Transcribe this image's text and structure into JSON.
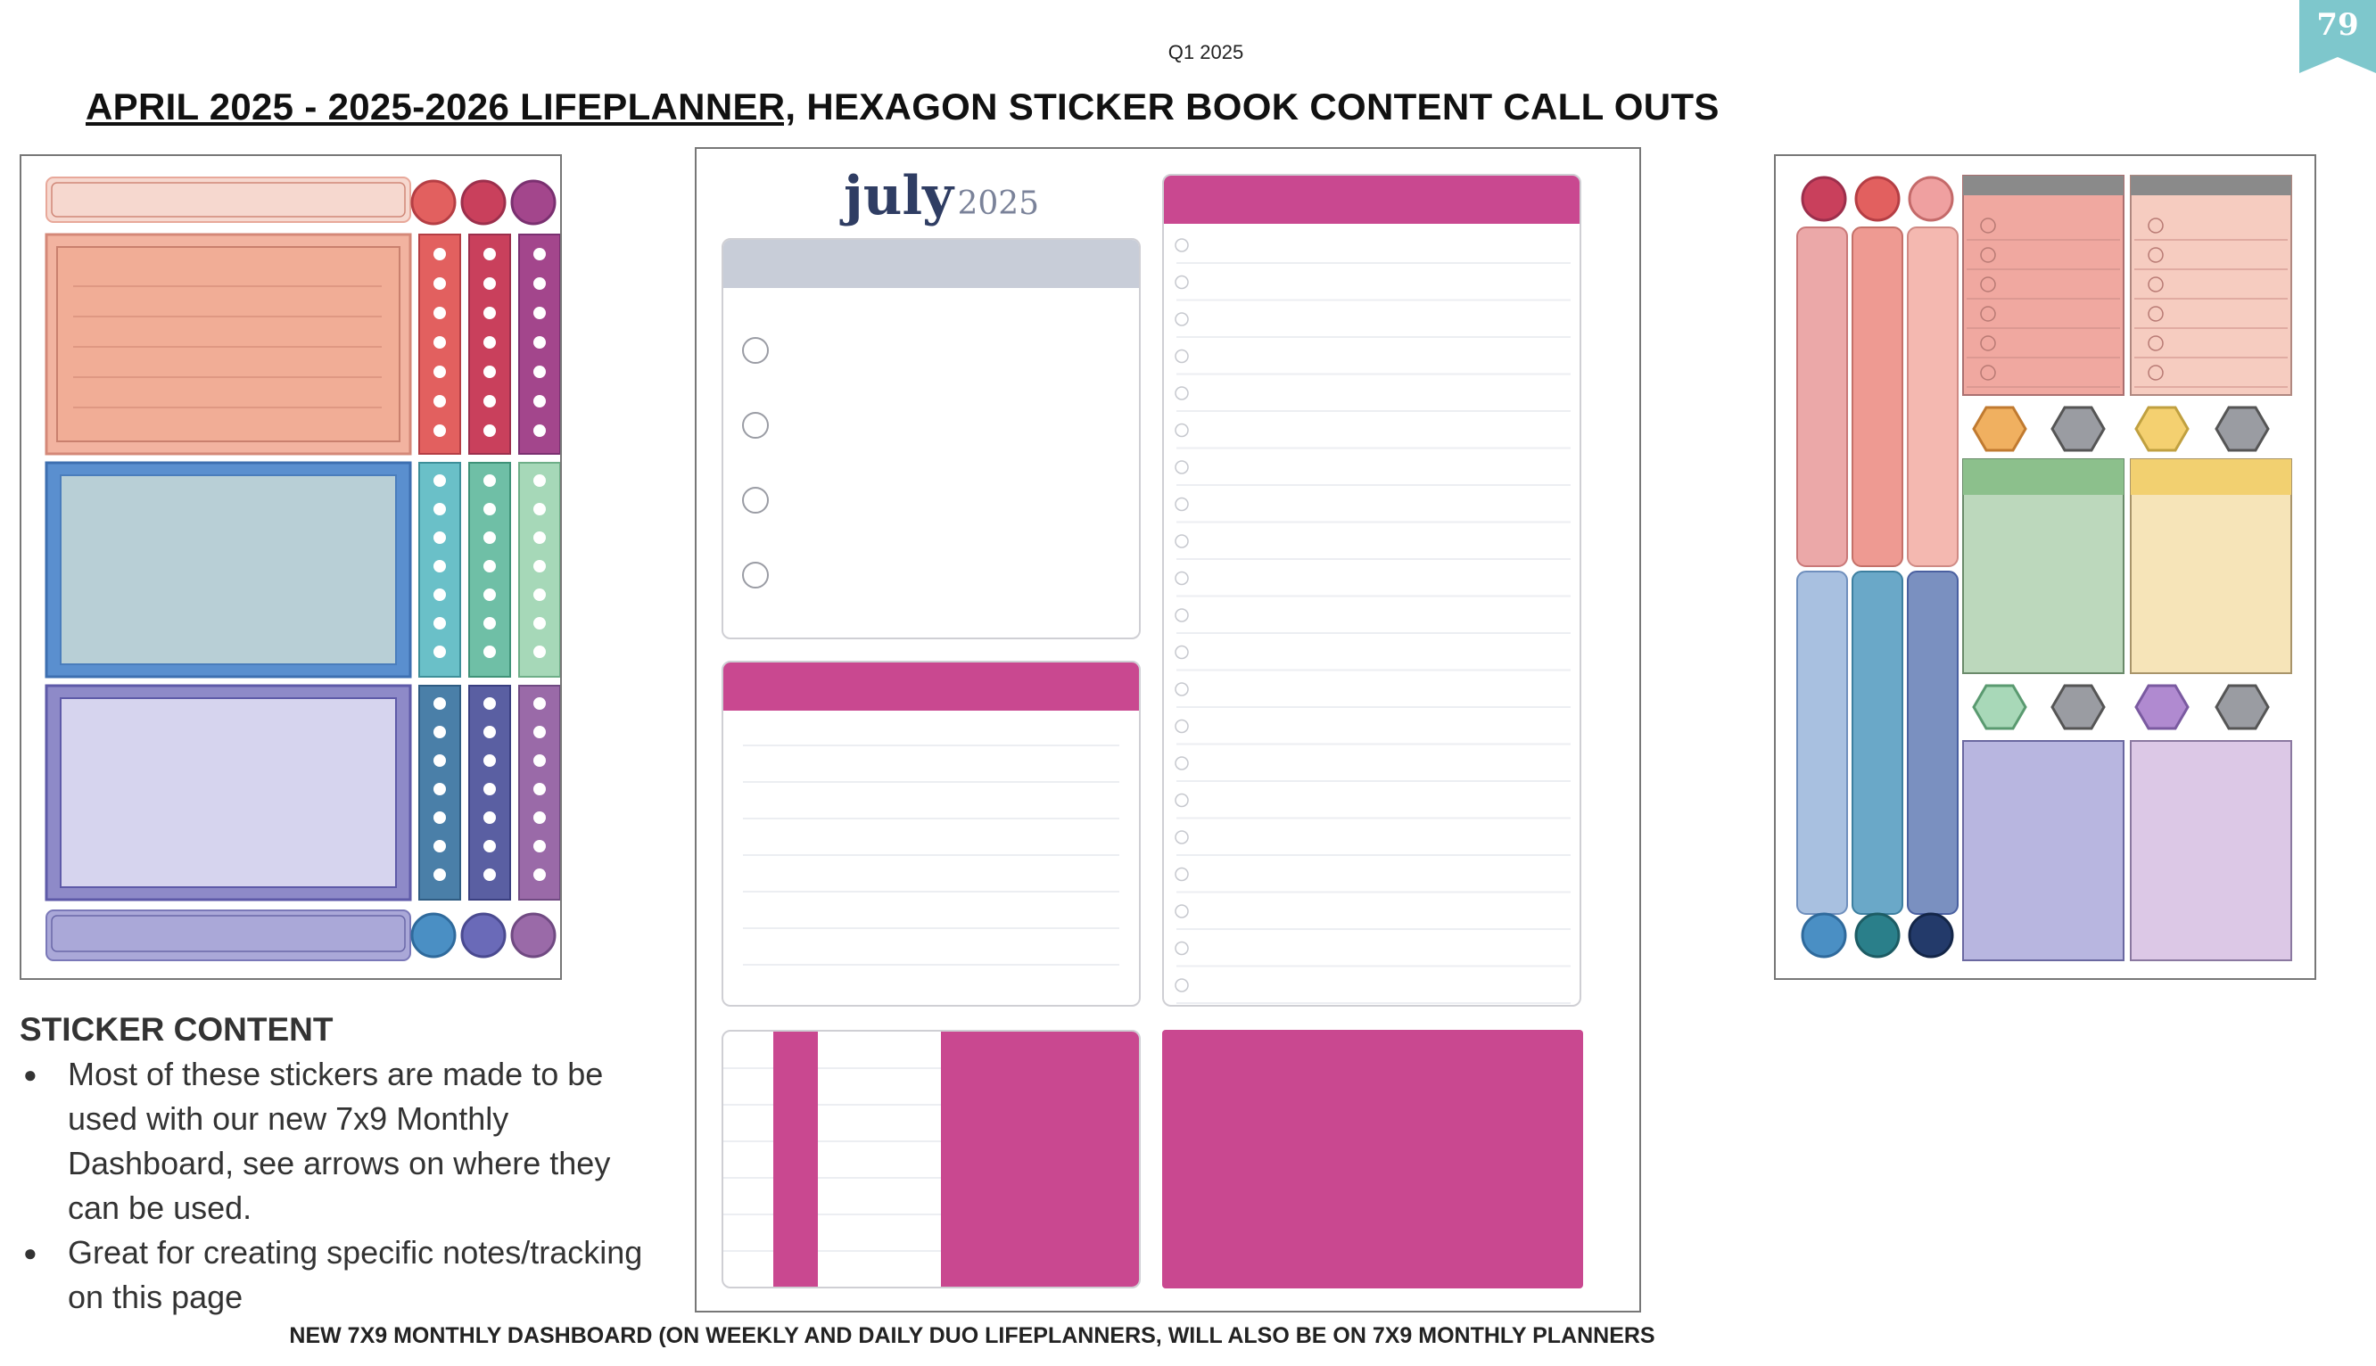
{
  "page": {
    "quarter_label": "Q1 2025",
    "page_number": "79",
    "title_underlined": "APRIL 2025 - 2025-2026 LIFEPLANNER,",
    "title_rest": " HEXAGON STICKER BOOK CONTENT CALL OUTS"
  },
  "sticker_content": {
    "heading": "STICKER CONTENT",
    "bullets": [
      "Most of these stickers are made to be used with our new 7x9 Monthly Dashboard, see arrows on where they can be used.",
      "Great for creating specific notes/tracking on this page"
    ]
  },
  "dashboard": {
    "month": "july",
    "year": "2025"
  },
  "footer": "NEW 7X9 MONTHLY DASHBOARD (ON WEEKLY AND DAILY DUO LIFEPLANNERS, WILL ALSO BE ON 7X9 MONTHLY PLANNERS",
  "colors": {
    "accent_magenta": "#c94890",
    "header_gray": "#c8cdd8",
    "ribbon_teal": "#7ec7cc",
    "coral": "#efae98",
    "blue_gray": "#b8cfd6",
    "lavender": "#d6d4ee"
  }
}
